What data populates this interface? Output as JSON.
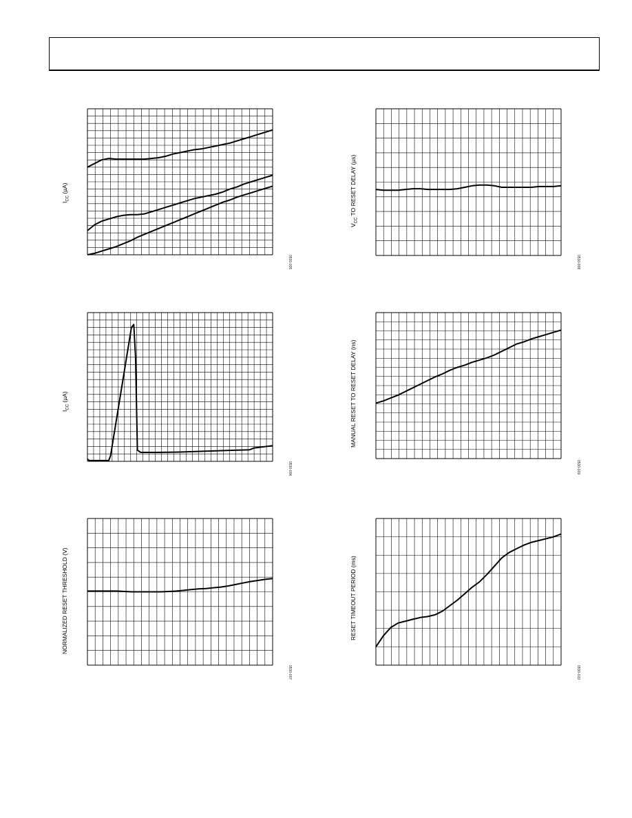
{
  "chart_data": [
    {
      "type": "line",
      "ylabel": "ICC (µA)",
      "ylabel_main": "I",
      "ylabel_sub": "CC",
      "ylabel_tail": " (µA)",
      "figure_id": "0530-005",
      "grid": true,
      "xlim": [
        0,
        26
      ],
      "ylim": [
        0,
        20
      ],
      "series": [
        {
          "x": [
            0,
            1,
            2,
            3,
            4,
            5,
            6,
            7,
            8,
            9,
            10,
            11,
            12,
            13,
            14,
            15,
            16,
            17,
            18,
            19,
            20,
            21,
            22,
            23,
            24,
            25,
            26
          ],
          "y": [
            12,
            12.5,
            13,
            13.2,
            13.1,
            13.1,
            13.1,
            13.1,
            13.1,
            13.2,
            13.3,
            13.5,
            13.8,
            14,
            14.2,
            14.4,
            14.5,
            14.7,
            14.9,
            15.1,
            15.3,
            15.6,
            15.9,
            16.2,
            16.5,
            16.8,
            17.1
          ]
        },
        {
          "x": [
            0,
            1,
            2,
            3,
            4,
            5,
            6,
            7,
            8,
            9,
            10,
            11,
            12,
            13,
            14,
            15,
            16,
            17,
            18,
            19,
            20,
            21,
            22,
            23,
            24,
            25,
            26
          ],
          "y": [
            3.3,
            4.1,
            4.6,
            4.9,
            5.2,
            5.4,
            5.5,
            5.5,
            5.6,
            5.9,
            6.2,
            6.5,
            6.8,
            7.1,
            7.4,
            7.7,
            7.9,
            8.1,
            8.3,
            8.6,
            9,
            9.3,
            9.7,
            10,
            10.3,
            10.6,
            10.9
          ]
        },
        {
          "x": [
            0,
            1,
            2,
            3,
            4,
            5,
            6,
            7,
            8,
            9,
            10,
            11,
            12,
            13,
            14,
            15,
            16,
            17,
            18,
            19,
            20,
            21,
            22,
            23,
            24,
            25,
            26
          ],
          "y": [
            0,
            0.2,
            0.5,
            0.8,
            1.1,
            1.5,
            1.9,
            2.4,
            2.8,
            3.2,
            3.6,
            4,
            4.4,
            4.8,
            5.2,
            5.6,
            6,
            6.4,
            6.8,
            7.2,
            7.5,
            7.9,
            8.2,
            8.5,
            8.8,
            9.1,
            9.4
          ]
        }
      ]
    },
    {
      "type": "line",
      "ylabel": "VCC TO RESET DELAY (µs)",
      "ylabel_main": "V",
      "ylabel_sub": "CC",
      "ylabel_tail": " TO RESET DELAY (µs)",
      "figure_id": "0530-008",
      "grid": true,
      "xlim": [
        0,
        25
      ],
      "ylim": [
        0,
        20
      ],
      "series": [
        {
          "x": [
            0,
            1,
            2,
            3,
            4,
            5,
            6,
            7,
            8,
            9,
            10,
            11,
            12,
            13,
            14,
            15,
            16,
            17,
            18,
            19,
            20,
            21,
            22,
            23,
            24,
            25
          ],
          "y": [
            9,
            8.9,
            8.9,
            8.9,
            9,
            9.1,
            9.1,
            9,
            9,
            9,
            9,
            9.1,
            9.3,
            9.5,
            9.6,
            9.6,
            9.5,
            9.3,
            9.3,
            9.3,
            9.3,
            9.3,
            9.4,
            9.4,
            9.4,
            9.5
          ]
        }
      ]
    },
    {
      "type": "line",
      "ylabel": "ICC (µA)",
      "ylabel_main": "I",
      "ylabel_sub": "CC",
      "ylabel_tail": " (µA)",
      "figure_id": "0530-006",
      "grid": true,
      "xlim": [
        0,
        40
      ],
      "ylim": [
        0,
        40
      ],
      "series": [
        {
          "x": [
            0,
            0.4,
            4.6,
            5,
            9.5,
            10,
            10.4,
            10.8,
            11.5,
            15,
            20,
            25,
            30,
            35,
            36,
            40
          ],
          "y": [
            0.6,
            0.2,
            0.2,
            1.5,
            36,
            36.8,
            28,
            3,
            2.4,
            2.4,
            2.5,
            2.7,
            2.9,
            3.1,
            3.6,
            4.2
          ]
        }
      ]
    },
    {
      "type": "line",
      "ylabel": "MANUAL RESET TO RESET DELAY (ns)",
      "ylabel_main": "MANUAL RESET TO RESET DELAY (ns)",
      "ylabel_sub": "",
      "ylabel_tail": "",
      "figure_id": "0530-009",
      "grid": true,
      "xlim": [
        0,
        25
      ],
      "ylim": [
        0,
        20
      ],
      "series": [
        {
          "x": [
            0,
            1,
            2,
            3,
            4,
            5,
            6,
            7,
            8,
            9,
            10,
            11,
            12,
            13,
            14,
            15,
            16,
            17,
            18,
            19,
            20,
            21,
            22,
            23,
            24,
            25
          ],
          "y": [
            7.6,
            7.9,
            8.3,
            8.7,
            9.2,
            9.7,
            10.2,
            10.7,
            11.2,
            11.6,
            12.1,
            12.5,
            12.8,
            13.2,
            13.5,
            13.8,
            14.2,
            14.7,
            15.2,
            15.7,
            16,
            16.4,
            16.7,
            17,
            17.3,
            17.6
          ]
        }
      ]
    },
    {
      "type": "line",
      "ylabel": "NORMALIZED RESET THRESHOLD (V)",
      "ylabel_main": "NORMALIZED RESET THRESHOLD (V)",
      "ylabel_sub": "",
      "ylabel_tail": "",
      "figure_id": "0530-007",
      "grid": true,
      "xlim": [
        0,
        25
      ],
      "ylim": [
        0,
        20
      ],
      "series": [
        {
          "x": [
            0,
            1,
            2,
            3,
            4,
            5,
            6,
            7,
            8,
            9,
            10,
            11,
            12,
            13,
            14,
            15,
            16,
            17,
            18,
            19,
            20,
            21,
            22,
            23,
            24,
            25
          ],
          "y": [
            10.1,
            10.1,
            10.1,
            10.1,
            10.1,
            10.05,
            10,
            10,
            10,
            10,
            10,
            10.05,
            10.1,
            10.2,
            10.3,
            10.4,
            10.45,
            10.55,
            10.65,
            10.8,
            11,
            11.2,
            11.4,
            11.55,
            11.7,
            11.8
          ]
        }
      ]
    },
    {
      "type": "line",
      "ylabel": "RESET TIMEOUT PERIOD (ms)",
      "ylabel_main": "RESET TIMEOUT PERIOD (ms)",
      "ylabel_sub": "",
      "ylabel_tail": "",
      "figure_id": "0530-010",
      "grid": true,
      "xlim": [
        0,
        25
      ],
      "ylim": [
        0,
        16
      ],
      "series": [
        {
          "x": [
            0,
            1,
            2,
            3,
            4,
            5,
            6,
            7,
            8,
            9,
            10,
            11,
            12,
            13,
            14,
            15,
            16,
            17,
            18,
            19,
            20,
            21,
            22,
            23,
            24,
            25
          ],
          "y": [
            2,
            3.2,
            4.1,
            4.6,
            4.8,
            5,
            5.2,
            5.3,
            5.5,
            5.9,
            6.5,
            7.1,
            7.8,
            8.5,
            9.1,
            9.9,
            10.8,
            11.7,
            12.3,
            12.7,
            13.1,
            13.4,
            13.6,
            13.8,
            14,
            14.3
          ]
        }
      ]
    }
  ]
}
